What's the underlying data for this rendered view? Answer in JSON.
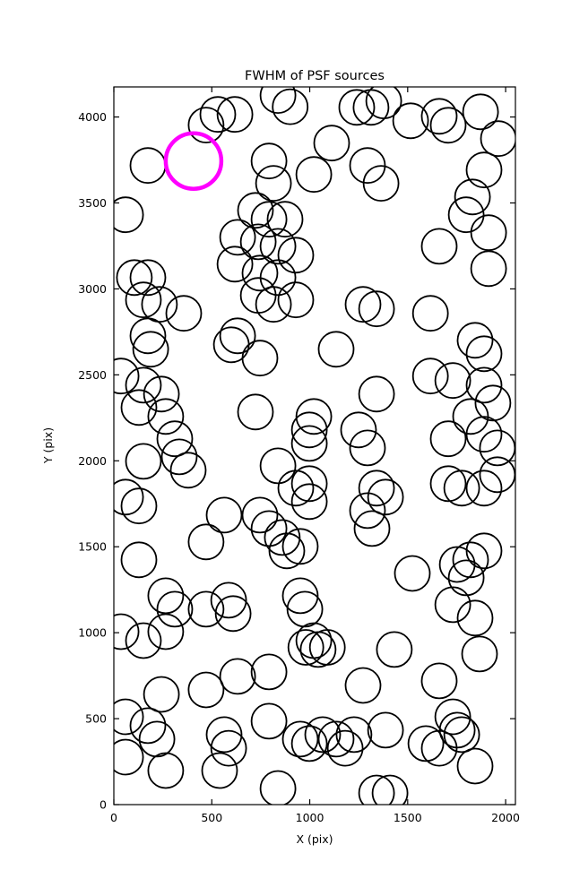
{
  "figure": {
    "title": "FWHM of PSF sources",
    "xlabel": "X (pix)",
    "ylabel": "Y (pix)"
  },
  "chart_data": {
    "type": "scatter",
    "title": "FWHM of PSF sources",
    "xlabel": "X (pix)",
    "ylabel": "Y (pix)",
    "xlim": [
      0,
      2050
    ],
    "ylim": [
      0,
      4175
    ],
    "xticks": [
      0,
      500,
      1000,
      1500,
      2000
    ],
    "yticks": [
      0,
      500,
      1000,
      1500,
      2000,
      2500,
      3000,
      3500,
      4000
    ],
    "grid": false,
    "legend": false,
    "marker": {
      "shape": "open-circle",
      "radius_px": 19.5,
      "stroke": "#000000",
      "stroke_width": 1.8,
      "fill": "none"
    },
    "highlight": {
      "x": 407,
      "y": 3744,
      "radius_px": 31,
      "stroke": "#ff00ff",
      "stroke_width": 4.5,
      "fill": "none"
    },
    "points": [
      [
        174,
        3718
      ],
      [
        471,
        3953
      ],
      [
        531,
        4015
      ],
      [
        618,
        4015
      ],
      [
        838,
        4125
      ],
      [
        900,
        4060
      ],
      [
        1112,
        3848
      ],
      [
        1240,
        4056
      ],
      [
        1313,
        4056
      ],
      [
        1378,
        4093
      ],
      [
        1515,
        3978
      ],
      [
        1661,
        4004
      ],
      [
        1707,
        3952
      ],
      [
        1872,
        4030
      ],
      [
        1963,
        3874
      ],
      [
        1295,
        3718
      ],
      [
        1364,
        3614
      ],
      [
        792,
        3744
      ],
      [
        815,
        3614
      ],
      [
        1021,
        3666
      ],
      [
        1890,
        3692
      ],
      [
        1831,
        3535
      ],
      [
        1799,
        3431
      ],
      [
        60,
        3431
      ],
      [
        723,
        3457
      ],
      [
        792,
        3405
      ],
      [
        874,
        3405
      ],
      [
        632,
        3300
      ],
      [
        737,
        3274
      ],
      [
        838,
        3248
      ],
      [
        929,
        3196
      ],
      [
        618,
        3144
      ],
      [
        746,
        3092
      ],
      [
        838,
        3066
      ],
      [
        737,
        2962
      ],
      [
        815,
        2910
      ],
      [
        929,
        2936
      ],
      [
        1661,
        3248
      ],
      [
        1913,
        3327
      ],
      [
        1913,
        3118
      ],
      [
        105,
        3066
      ],
      [
        174,
        3066
      ],
      [
        151,
        2936
      ],
      [
        233,
        2910
      ],
      [
        357,
        2858
      ],
      [
        174,
        2727
      ],
      [
        188,
        2649
      ],
      [
        1272,
        2910
      ],
      [
        1341,
        2884
      ],
      [
        1616,
        2858
      ],
      [
        632,
        2727
      ],
      [
        600,
        2675
      ],
      [
        746,
        2597
      ],
      [
        1135,
        2649
      ],
      [
        1844,
        2701
      ],
      [
        1890,
        2623
      ],
      [
        37,
        2493
      ],
      [
        151,
        2440
      ],
      [
        243,
        2388
      ],
      [
        128,
        2310
      ],
      [
        265,
        2258
      ],
      [
        723,
        2284
      ],
      [
        1021,
        2258
      ],
      [
        998,
        2180
      ],
      [
        1341,
        2388
      ],
      [
        1616,
        2493
      ],
      [
        1730,
        2467
      ],
      [
        1890,
        2440
      ],
      [
        1935,
        2336
      ],
      [
        1821,
        2258
      ],
      [
        151,
        1997
      ],
      [
        311,
        2128
      ],
      [
        334,
        2023
      ],
      [
        380,
        1945
      ],
      [
        838,
        1971
      ],
      [
        998,
        2101
      ],
      [
        1249,
        2180
      ],
      [
        1295,
        2075
      ],
      [
        1707,
        2128
      ],
      [
        1890,
        2154
      ],
      [
        1958,
        2075
      ],
      [
        929,
        1841
      ],
      [
        998,
        1867
      ],
      [
        998,
        1763
      ],
      [
        1341,
        1841
      ],
      [
        1387,
        1789
      ],
      [
        1707,
        1867
      ],
      [
        1776,
        1841
      ],
      [
        1890,
        1841
      ],
      [
        1958,
        1919
      ],
      [
        60,
        1789
      ],
      [
        128,
        1737
      ],
      [
        563,
        1684
      ],
      [
        746,
        1684
      ],
      [
        792,
        1606
      ],
      [
        860,
        1554
      ],
      [
        883,
        1476
      ],
      [
        952,
        1502
      ],
      [
        1295,
        1710
      ],
      [
        1318,
        1606
      ],
      [
        471,
        1528
      ],
      [
        128,
        1424
      ],
      [
        1524,
        1345
      ],
      [
        1753,
        1397
      ],
      [
        1821,
        1424
      ],
      [
        1890,
        1476
      ],
      [
        1799,
        1319
      ],
      [
        265,
        1215
      ],
      [
        311,
        1137
      ],
      [
        471,
        1137
      ],
      [
        586,
        1189
      ],
      [
        609,
        1111
      ],
      [
        952,
        1215
      ],
      [
        975,
        1137
      ],
      [
        1730,
        1163
      ],
      [
        1844,
        1085
      ],
      [
        37,
        1006
      ],
      [
        151,
        954
      ],
      [
        265,
        1006
      ],
      [
        1021,
        954
      ],
      [
        1043,
        902
      ],
      [
        980,
        915
      ],
      [
        1090,
        915
      ],
      [
        1432,
        902
      ],
      [
        1867,
        876
      ],
      [
        632,
        746
      ],
      [
        792,
        772
      ],
      [
        471,
        667
      ],
      [
        243,
        641
      ],
      [
        1272,
        693
      ],
      [
        1661,
        720
      ],
      [
        60,
        511
      ],
      [
        792,
        485
      ],
      [
        174,
        459
      ],
      [
        220,
        381
      ],
      [
        563,
        407
      ],
      [
        586,
        328
      ],
      [
        952,
        381
      ],
      [
        998,
        355
      ],
      [
        1066,
        407
      ],
      [
        1135,
        381
      ],
      [
        1181,
        328
      ],
      [
        1226,
        407
      ],
      [
        1387,
        433
      ],
      [
        1593,
        355
      ],
      [
        1661,
        328
      ],
      [
        1730,
        511
      ],
      [
        1753,
        433
      ],
      [
        1776,
        407
      ],
      [
        60,
        276
      ],
      [
        265,
        198
      ],
      [
        540,
        198
      ],
      [
        838,
        94
      ],
      [
        1341,
        68
      ],
      [
        1410,
        68
      ],
      [
        1844,
        224
      ]
    ]
  }
}
